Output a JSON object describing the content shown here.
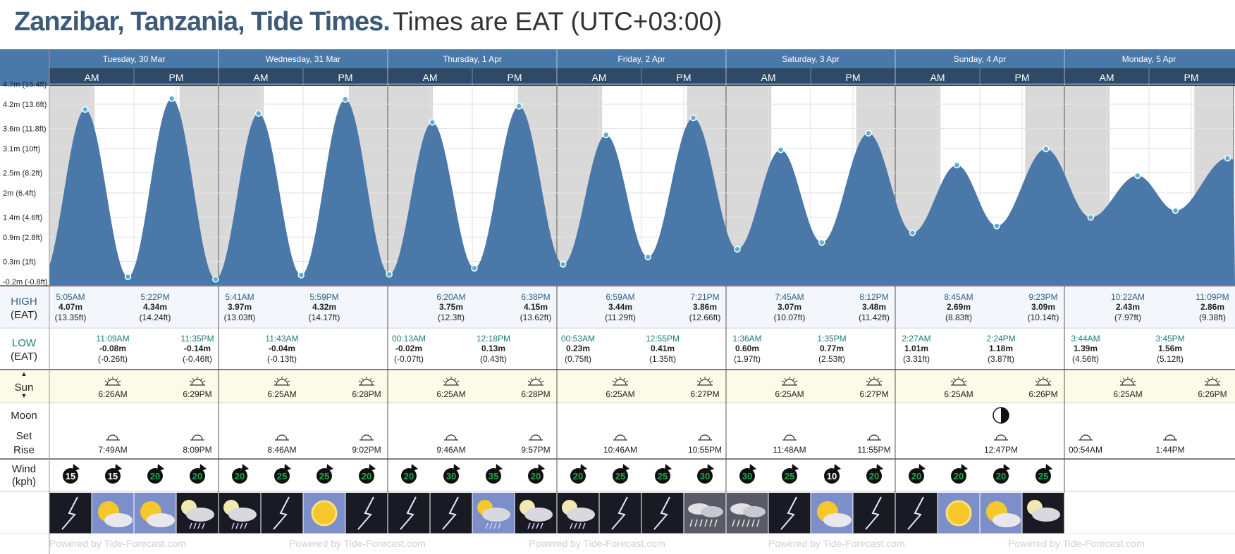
{
  "header": {
    "place": "Zanzibar, Tanzania, Tide Times.",
    "timezone": "Times are EAT (UTC+03:00)"
  },
  "days": [
    "Tuesday, 30 Mar",
    "Wednesday, 31 Mar",
    "Thursday, 1 Apr",
    "Friday, 2 Apr",
    "Saturday, 3 Apr",
    "Sunday, 4 Apr",
    "Monday, 5 Apr"
  ],
  "periods": [
    "AM",
    "PM"
  ],
  "chart_data": {
    "type": "area",
    "x_unit": "hours since Tuesday 30 Mar 00:00 (EAT)",
    "ylabel": "",
    "ylim": [
      -0.25,
      4.85
    ],
    "y_ticks": [
      {
        "value": 4.7,
        "label": "4.7m (15.4ft)"
      },
      {
        "value": 4.2,
        "label": "4.2m (13.6ft)"
      },
      {
        "value": 3.6,
        "label": "3.6m (11.8ft)"
      },
      {
        "value": 3.1,
        "label": "3.1m (10ft)"
      },
      {
        "value": 2.5,
        "label": "2.5m (8.2ft)"
      },
      {
        "value": 2.0,
        "label": "2m (6.4ft)"
      },
      {
        "value": 1.4,
        "label": "1.4m (4.6ft)"
      },
      {
        "value": 0.9,
        "label": "0.9m (2.8ft)"
      },
      {
        "value": 0.3,
        "label": "0.3m (1ft)"
      },
      {
        "value": -0.2,
        "label": "-0.2m (-0.8ft)"
      }
    ],
    "extrema": [
      {
        "t": 5.08,
        "h": 4.07
      },
      {
        "t": 11.15,
        "h": -0.08
      },
      {
        "t": 17.37,
        "h": 4.34
      },
      {
        "t": 23.58,
        "h": -0.14
      },
      {
        "t": 29.68,
        "h": 3.97
      },
      {
        "t": 35.72,
        "h": -0.04
      },
      {
        "t": 41.98,
        "h": 4.32
      },
      {
        "t": 48.22,
        "h": -0.02
      },
      {
        "t": 54.33,
        "h": 3.75
      },
      {
        "t": 60.3,
        "h": 0.13
      },
      {
        "t": 66.63,
        "h": 4.15
      },
      {
        "t": 72.88,
        "h": 0.23
      },
      {
        "t": 78.98,
        "h": 3.44
      },
      {
        "t": 84.92,
        "h": 0.41
      },
      {
        "t": 91.35,
        "h": 3.86
      },
      {
        "t": 97.6,
        "h": 0.6
      },
      {
        "t": 103.75,
        "h": 3.07
      },
      {
        "t": 109.58,
        "h": 0.77
      },
      {
        "t": 116.2,
        "h": 3.48
      },
      {
        "t": 122.45,
        "h": 1.01
      },
      {
        "t": 128.75,
        "h": 2.69
      },
      {
        "t": 134.4,
        "h": 1.18
      },
      {
        "t": 141.38,
        "h": 3.09
      },
      {
        "t": 147.73,
        "h": 1.39
      },
      {
        "t": 154.37,
        "h": 2.43
      },
      {
        "t": 159.75,
        "h": 1.56
      },
      {
        "t": 167.15,
        "h": 2.86
      }
    ],
    "series_color": "#4a78a8",
    "night_color": "#d9d9d9"
  },
  "tides": {
    "high_label": "HIGH",
    "low_label": "LOW",
    "tz_label": "(EAT)",
    "high": [
      {
        "t": 5.08,
        "time": "5:05AM",
        "m": "4.07m",
        "ft": "(13.35ft)"
      },
      {
        "t": 17.37,
        "time": "5:22PM",
        "m": "4.34m",
        "ft": "(14.24ft)"
      },
      {
        "t": 29.68,
        "time": "5:41AM",
        "m": "3.97m",
        "ft": "(13.03ft)"
      },
      {
        "t": 41.98,
        "time": "5:59PM",
        "m": "4.32m",
        "ft": "(14.17ft)"
      },
      {
        "t": 54.33,
        "time": "6:20AM",
        "m": "3.75m",
        "ft": "(12.3ft)"
      },
      {
        "t": 66.63,
        "time": "6:38PM",
        "m": "4.15m",
        "ft": "(13.62ft)"
      },
      {
        "t": 78.98,
        "time": "6:59AM",
        "m": "3.44m",
        "ft": "(11.29ft)"
      },
      {
        "t": 91.35,
        "time": "7:21PM",
        "m": "3.86m",
        "ft": "(12.66ft)"
      },
      {
        "t": 103.75,
        "time": "7:45AM",
        "m": "3.07m",
        "ft": "(10.07ft)"
      },
      {
        "t": 116.2,
        "time": "8:12PM",
        "m": "3.48m",
        "ft": "(11.42ft)"
      },
      {
        "t": 128.75,
        "time": "8:45AM",
        "m": "2.69m",
        "ft": "(8.83ft)"
      },
      {
        "t": 141.38,
        "time": "9:23PM",
        "m": "3.09m",
        "ft": "(10.14ft)"
      },
      {
        "t": 154.37,
        "time": "10:22AM",
        "m": "2.43m",
        "ft": "(7.97ft)"
      },
      {
        "t": 167.15,
        "time": "11:09PM",
        "m": "2.86m",
        "ft": "(9.38ft)"
      }
    ],
    "low": [
      {
        "t": 11.15,
        "time": "11:09AM",
        "m": "-0.08m",
        "ft": "(-0.26ft)"
      },
      {
        "t": 23.58,
        "time": "11:35PM",
        "m": "-0.14m",
        "ft": "(-0.46ft)"
      },
      {
        "t": 35.72,
        "time": "11:43AM",
        "m": "-0.04m",
        "ft": "(-0.13ft)"
      },
      {
        "t": 48.22,
        "time": "00:13AM",
        "m": "-0.02m",
        "ft": "(-0.07ft)"
      },
      {
        "t": 60.3,
        "time": "12:18PM",
        "m": "0.13m",
        "ft": "(0.43ft)"
      },
      {
        "t": 72.88,
        "time": "00:53AM",
        "m": "0.23m",
        "ft": "(0.75ft)"
      },
      {
        "t": 84.92,
        "time": "12:55PM",
        "m": "0.41m",
        "ft": "(1.35ft)"
      },
      {
        "t": 97.6,
        "time": "1:36AM",
        "m": "0.60m",
        "ft": "(1.97ft)"
      },
      {
        "t": 109.58,
        "time": "1:35PM",
        "m": "0.77m",
        "ft": "(2.53ft)"
      },
      {
        "t": 122.45,
        "time": "2:27AM",
        "m": "1.01m",
        "ft": "(3.31ft)"
      },
      {
        "t": 134.4,
        "time": "2:24PM",
        "m": "1.18m",
        "ft": "(3.87ft)"
      },
      {
        "t": 147.73,
        "time": "3:44AM",
        "m": "1.39m",
        "ft": "(4.56ft)"
      },
      {
        "t": 159.75,
        "time": "3:45PM",
        "m": "1.56m",
        "ft": "(5.12ft)"
      }
    ]
  },
  "sun": {
    "label": "Sun",
    "up_icon": "▲",
    "down_icon": "▼",
    "events": [
      {
        "t": 6.43,
        "kind": "sunrise",
        "time": "6:26AM"
      },
      {
        "t": 18.48,
        "kind": "sunset",
        "time": "6:29PM"
      },
      {
        "t": 30.42,
        "kind": "sunrise",
        "time": "6:25AM"
      },
      {
        "t": 42.47,
        "kind": "sunset",
        "time": "6:28PM"
      },
      {
        "t": 54.42,
        "kind": "sunrise",
        "time": "6:25AM"
      },
      {
        "t": 66.47,
        "kind": "sunset",
        "time": "6:28PM"
      },
      {
        "t": 78.42,
        "kind": "sunrise",
        "time": "6:25AM"
      },
      {
        "t": 90.45,
        "kind": "sunset",
        "time": "6:27PM"
      },
      {
        "t": 102.42,
        "kind": "sunrise",
        "time": "6:25AM"
      },
      {
        "t": 114.45,
        "kind": "sunset",
        "time": "6:27PM"
      },
      {
        "t": 126.42,
        "kind": "sunrise",
        "time": "6:25AM"
      },
      {
        "t": 138.43,
        "kind": "sunset",
        "time": "6:26PM"
      },
      {
        "t": 150.42,
        "kind": "sunrise",
        "time": "6:25AM"
      },
      {
        "t": 162.43,
        "kind": "sunset",
        "time": "6:26PM"
      }
    ]
  },
  "moon": {
    "label": "Moon",
    "set_label": "Set",
    "rise_label": "Rise",
    "events": [
      {
        "t": 7.82,
        "kind": "set",
        "time": "7:49AM"
      },
      {
        "t": 20.15,
        "kind": "rise",
        "time": "8:09PM"
      },
      {
        "t": 32.77,
        "kind": "set",
        "time": "8:46AM"
      },
      {
        "t": 45.03,
        "kind": "rise",
        "time": "9:02PM"
      },
      {
        "t": 57.77,
        "kind": "set",
        "time": "9:46AM"
      },
      {
        "t": 69.95,
        "kind": "rise",
        "time": "9:57PM"
      },
      {
        "t": 82.77,
        "kind": "set",
        "time": "10:46AM"
      },
      {
        "t": 94.92,
        "kind": "rise",
        "time": "10:55PM"
      },
      {
        "t": 107.8,
        "kind": "set",
        "time": "11:48AM"
      },
      {
        "t": 119.92,
        "kind": "rise",
        "time": "11:55PM"
      },
      {
        "t": 132.78,
        "kind": "set",
        "time": "12:47PM"
      },
      {
        "t": 144.9,
        "kind": "rise",
        "time": "00:54AM"
      },
      {
        "t": 157.73,
        "kind": "set",
        "time": "1:44PM"
      }
    ],
    "phase_icon": {
      "t": 132.78,
      "icon": "last-quarter-moon-icon"
    }
  },
  "wind": {
    "label_line1": "Wind",
    "label_line2": "(kph)",
    "speeds": [
      15,
      15,
      20,
      20,
      20,
      25,
      25,
      20,
      20,
      30,
      35,
      20,
      20,
      25,
      25,
      30,
      30,
      25,
      10,
      20,
      20,
      20,
      20,
      25
    ]
  },
  "weather": {
    "icons": [
      "thunderstorm-night-icon",
      "partly-cloudy-day-icon",
      "partly-cloudy-day-icon",
      "rain-night-icon",
      "rain-night-icon",
      "thunderstorm-night-icon",
      "sunny-icon",
      "thunderstorm-night-icon",
      "thunderstorm-night-icon",
      "thunderstorm-night-icon",
      "rain-day-icon",
      "rain-night-icon",
      "rain-night-icon",
      "thunderstorm-night-icon",
      "thunderstorm-night-icon",
      "heavy-rain-icon",
      "heavy-rain-icon",
      "thunderstorm-night-icon",
      "partly-cloudy-day-icon",
      "thunderstorm-night-icon",
      "thunderstorm-night-icon",
      "sunny-icon",
      "partly-cloudy-day-icon",
      "cloudy-night-icon"
    ]
  },
  "footer": {
    "watermark": "Powered by Tide-Forecast.com"
  },
  "colors": {
    "header_bar": "#4a78a8",
    "ampm_bar": "#2f4a66",
    "title_blue": "#3d5a78",
    "high_text": "#2f5f8f",
    "low_text": "#1e7a7a",
    "wind_arrow": "#111111",
    "wind_number": "#1fa84a",
    "sun_band": "#fbfbe8",
    "dot_fill": "#5bb0d4"
  }
}
